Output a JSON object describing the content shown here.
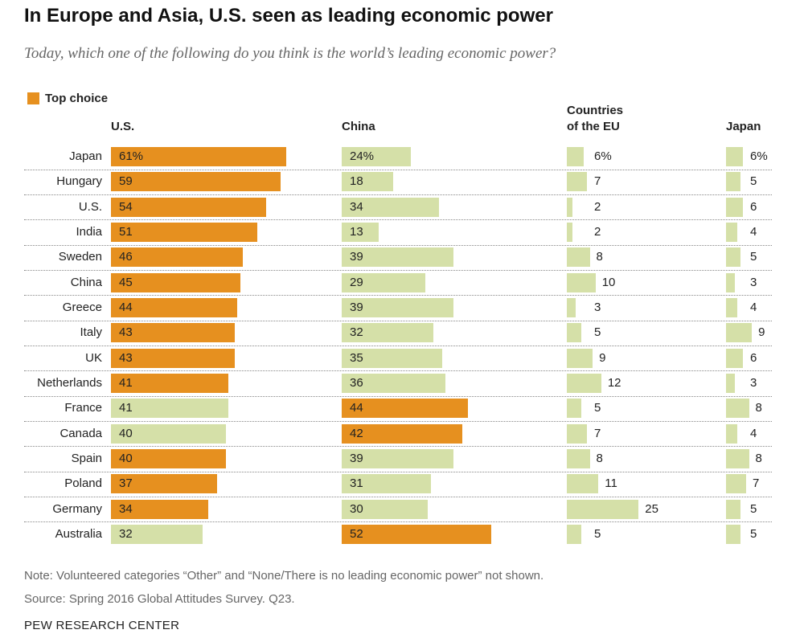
{
  "chart_data": {
    "type": "bar",
    "title": "In Europe and Asia, U.S. seen as leading economic power",
    "subtitle": "Today, which one of the following do you think is the world’s leading economic power?",
    "legend": {
      "label": "Top choice",
      "color": "#e6901f"
    },
    "top_choice_color": "#e6901f",
    "categories": [
      "Japan",
      "Hungary",
      "U.S.",
      "India",
      "Sweden",
      "China",
      "Greece",
      "Italy",
      "UK",
      "Netherlands",
      "France",
      "Canada",
      "Spain",
      "Poland",
      "Germany",
      "Australia"
    ],
    "series": [
      {
        "name": "U.S.",
        "color": "#d5e0a8",
        "values": [
          61,
          59,
          54,
          51,
          46,
          45,
          44,
          43,
          43,
          41,
          41,
          40,
          40,
          37,
          34,
          32
        ],
        "value_labels": [
          "61%",
          "59",
          "54",
          "51",
          "46",
          "45",
          "44",
          "43",
          "43",
          "41",
          "41",
          "40",
          "40",
          "37",
          "34",
          "32"
        ]
      },
      {
        "name": "China",
        "color": "#d5e0a8",
        "values": [
          24,
          18,
          34,
          13,
          39,
          29,
          39,
          32,
          35,
          36,
          44,
          42,
          39,
          31,
          30,
          52
        ],
        "value_labels": [
          "24%",
          "18",
          "34",
          "13",
          "39",
          "29",
          "39",
          "32",
          "35",
          "36",
          "44",
          "42",
          "39",
          "31",
          "30",
          "52"
        ]
      },
      {
        "name": "Countries of the EU",
        "color": "#d5e0a8",
        "values": [
          6,
          7,
          2,
          2,
          8,
          10,
          3,
          5,
          9,
          12,
          5,
          7,
          8,
          11,
          25,
          5
        ],
        "value_labels": [
          "6%",
          "7",
          "2",
          "2",
          "8",
          "10",
          "3",
          "5",
          "9",
          "12",
          "5",
          "7",
          "8",
          "11",
          "25",
          "5"
        ]
      },
      {
        "name": "Japan",
        "color": "#d5e0a8",
        "values": [
          6,
          5,
          6,
          4,
          5,
          3,
          4,
          9,
          6,
          3,
          8,
          4,
          8,
          7,
          5,
          5
        ],
        "value_labels": [
          "6%",
          "5",
          "6",
          "4",
          "5",
          "3",
          "4",
          "9",
          "6",
          "3",
          "8",
          "4",
          "8",
          "7",
          "5",
          "5"
        ]
      }
    ],
    "note": "Note: Volunteered categories “Other” and “None/There is no leading economic power” not shown.",
    "source": "Source: Spring 2016 Global Attitudes Survey. Q23.",
    "credit": "PEW RESEARCH CENTER"
  }
}
